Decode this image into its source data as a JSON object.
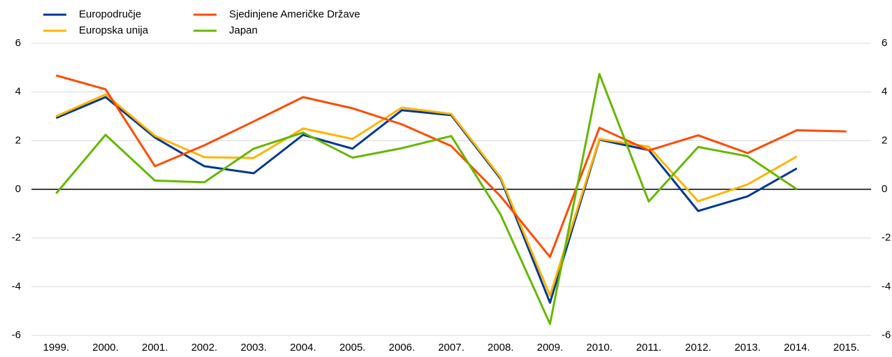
{
  "chart_data": {
    "type": "line",
    "categories": [
      "1999.",
      "2000.",
      "2001.",
      "2002.",
      "2003.",
      "2004.",
      "2005.",
      "2006.",
      "2007.",
      "2008.",
      "2009.",
      "2010.",
      "2011.",
      "2012.",
      "2013.",
      "2014.",
      "2015."
    ],
    "series": [
      {
        "name": "Europodručje",
        "color": "#003894",
        "values": [
          2.93,
          3.79,
          2.13,
          0.95,
          0.66,
          2.24,
          1.67,
          3.25,
          3.05,
          0.43,
          -4.66,
          2.04,
          1.61,
          -0.89,
          -0.29,
          0.86,
          null
        ]
      },
      {
        "name": "Europska unija",
        "color": "#ffb400",
        "values": [
          3.0,
          3.9,
          2.2,
          1.32,
          1.29,
          2.5,
          2.07,
          3.36,
          3.1,
          0.49,
          -4.37,
          2.07,
          1.75,
          -0.49,
          0.2,
          1.35,
          null
        ]
      },
      {
        "name": "Sjedinjene Američke Države",
        "color": "#ff4b00",
        "values": [
          4.68,
          4.11,
          0.95,
          1.81,
          2.79,
          3.79,
          3.33,
          2.67,
          1.78,
          -0.29,
          -2.78,
          2.53,
          1.6,
          2.22,
          1.49,
          2.43,
          2.38
        ]
      },
      {
        "name": "Japan",
        "color": "#65b800",
        "values": [
          -0.17,
          2.24,
          0.36,
          0.29,
          1.67,
          2.33,
          1.3,
          1.69,
          2.19,
          -1.04,
          -5.53,
          4.74,
          -0.5,
          1.74,
          1.36,
          0,
          null
        ]
      }
    ],
    "ylim": [
      -6,
      6
    ],
    "yticks": [
      -6,
      -4,
      -2,
      0,
      2,
      4,
      6
    ],
    "grid": true,
    "legend": "top-left"
  }
}
